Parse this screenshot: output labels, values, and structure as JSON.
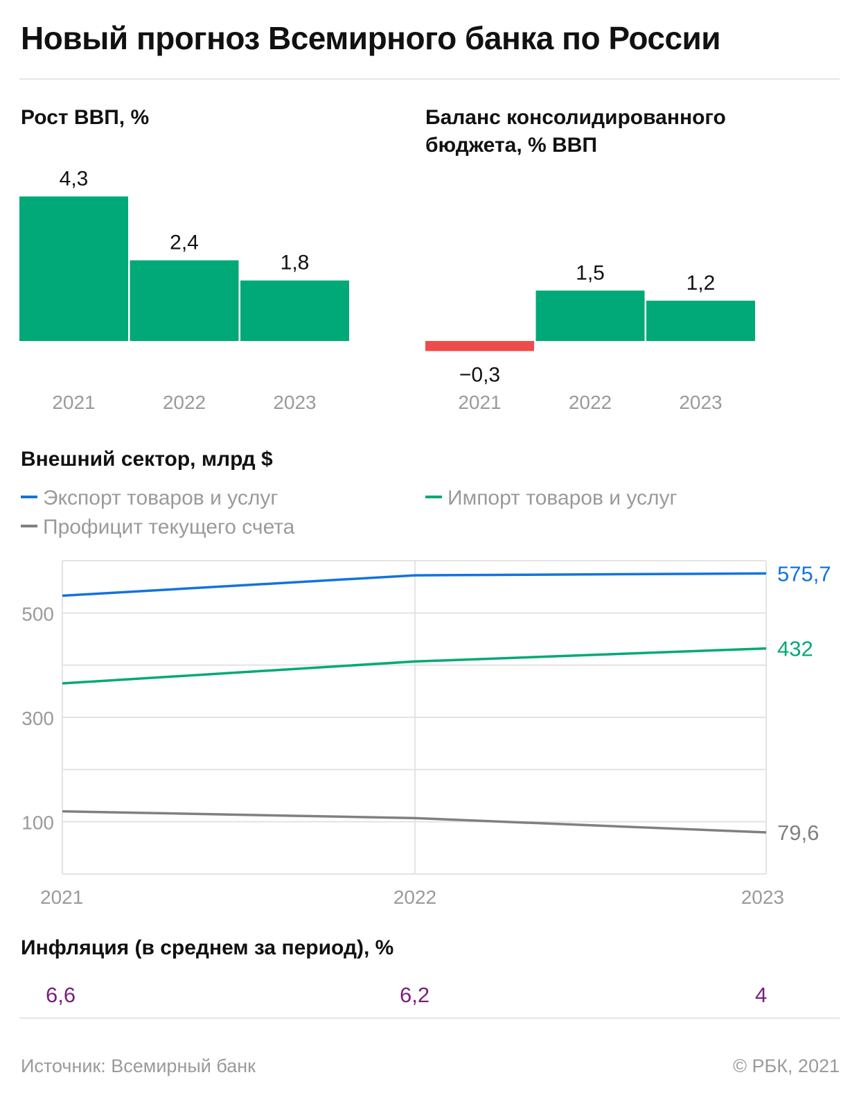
{
  "title": "Новый прогноз Всемирного банка по России",
  "colors": {
    "positive": "#00a977",
    "negative": "#f04b4b",
    "export": "#1273de",
    "import": "#00a977",
    "surplus": "#808080",
    "inflation": "#7a1f7a",
    "axis": "#9a9a9a"
  },
  "chart_data": [
    {
      "type": "bar",
      "title": "Рост ВВП, %",
      "categories": [
        "2021",
        "2022",
        "2023"
      ],
      "values": [
        4.3,
        2.4,
        1.8
      ],
      "labels": [
        "4,3",
        "2,4",
        "1,8"
      ]
    },
    {
      "type": "bar",
      "title": "Баланс консолидированного бюджета, % ВВП",
      "categories": [
        "2021",
        "2022",
        "2023"
      ],
      "values": [
        -0.3,
        1.5,
        1.2
      ],
      "labels": [
        "−0,3",
        "1,5",
        "1,2"
      ]
    },
    {
      "type": "line",
      "title": "Внешний сектор, млрд $",
      "categories": [
        "2021",
        "2022",
        "2023"
      ],
      "ylim": [
        0,
        600
      ],
      "yticks": [
        100,
        300,
        500
      ],
      "gridlines": [
        0,
        100,
        200,
        300,
        400,
        500,
        600
      ],
      "series": [
        {
          "name": "Экспорт товаров и услуг",
          "color": "#1273de",
          "values": [
            533,
            572,
            575.7
          ],
          "end_label": "575,7"
        },
        {
          "name": "Импорт товаров и услуг",
          "color": "#00a977",
          "values": [
            365,
            407,
            432
          ],
          "end_label": "432"
        },
        {
          "name": "Профицит текущего счета",
          "color": "#808080",
          "values": [
            120,
            107,
            79.6
          ],
          "end_label": "79,6"
        }
      ]
    }
  ],
  "inflation": {
    "title": "Инфляция (в среднем за период), %",
    "values": [
      "6,6",
      "6,2",
      "4"
    ]
  },
  "footer": {
    "source": "Источник: Всемирный банк",
    "copyright": "© РБК, 2021"
  }
}
